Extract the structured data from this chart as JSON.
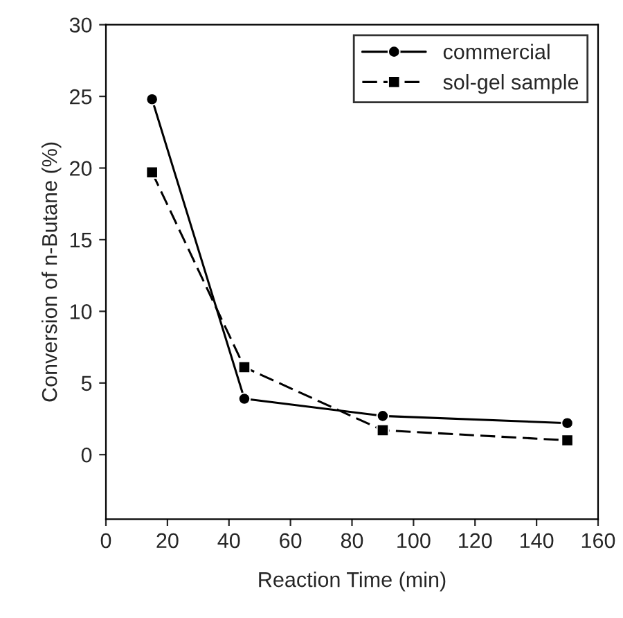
{
  "chart_data": {
    "type": "line",
    "xlabel": "Reaction Time (min)",
    "ylabel": "Conversion of n-Butane (%)",
    "x": [
      15,
      45,
      90,
      150
    ],
    "series": [
      {
        "name": "commercial",
        "color": "#000000",
        "values": [
          24.8,
          3.9,
          2.7,
          2.2
        ],
        "marker": "circle",
        "line_style": "solid"
      },
      {
        "name": "sol-gel sample",
        "color": "#000000",
        "values": [
          19.7,
          6.1,
          1.7,
          1.0
        ],
        "marker": "square",
        "line_style": "dashed"
      }
    ],
    "xlim": [
      0,
      160
    ],
    "xticks": [
      0,
      20,
      40,
      60,
      80,
      100,
      120,
      140,
      160
    ],
    "ylim": [
      -4.5,
      30
    ],
    "yticks": [
      0,
      5,
      10,
      15,
      20,
      25,
      30
    ],
    "grid": false,
    "legend": "top right"
  }
}
